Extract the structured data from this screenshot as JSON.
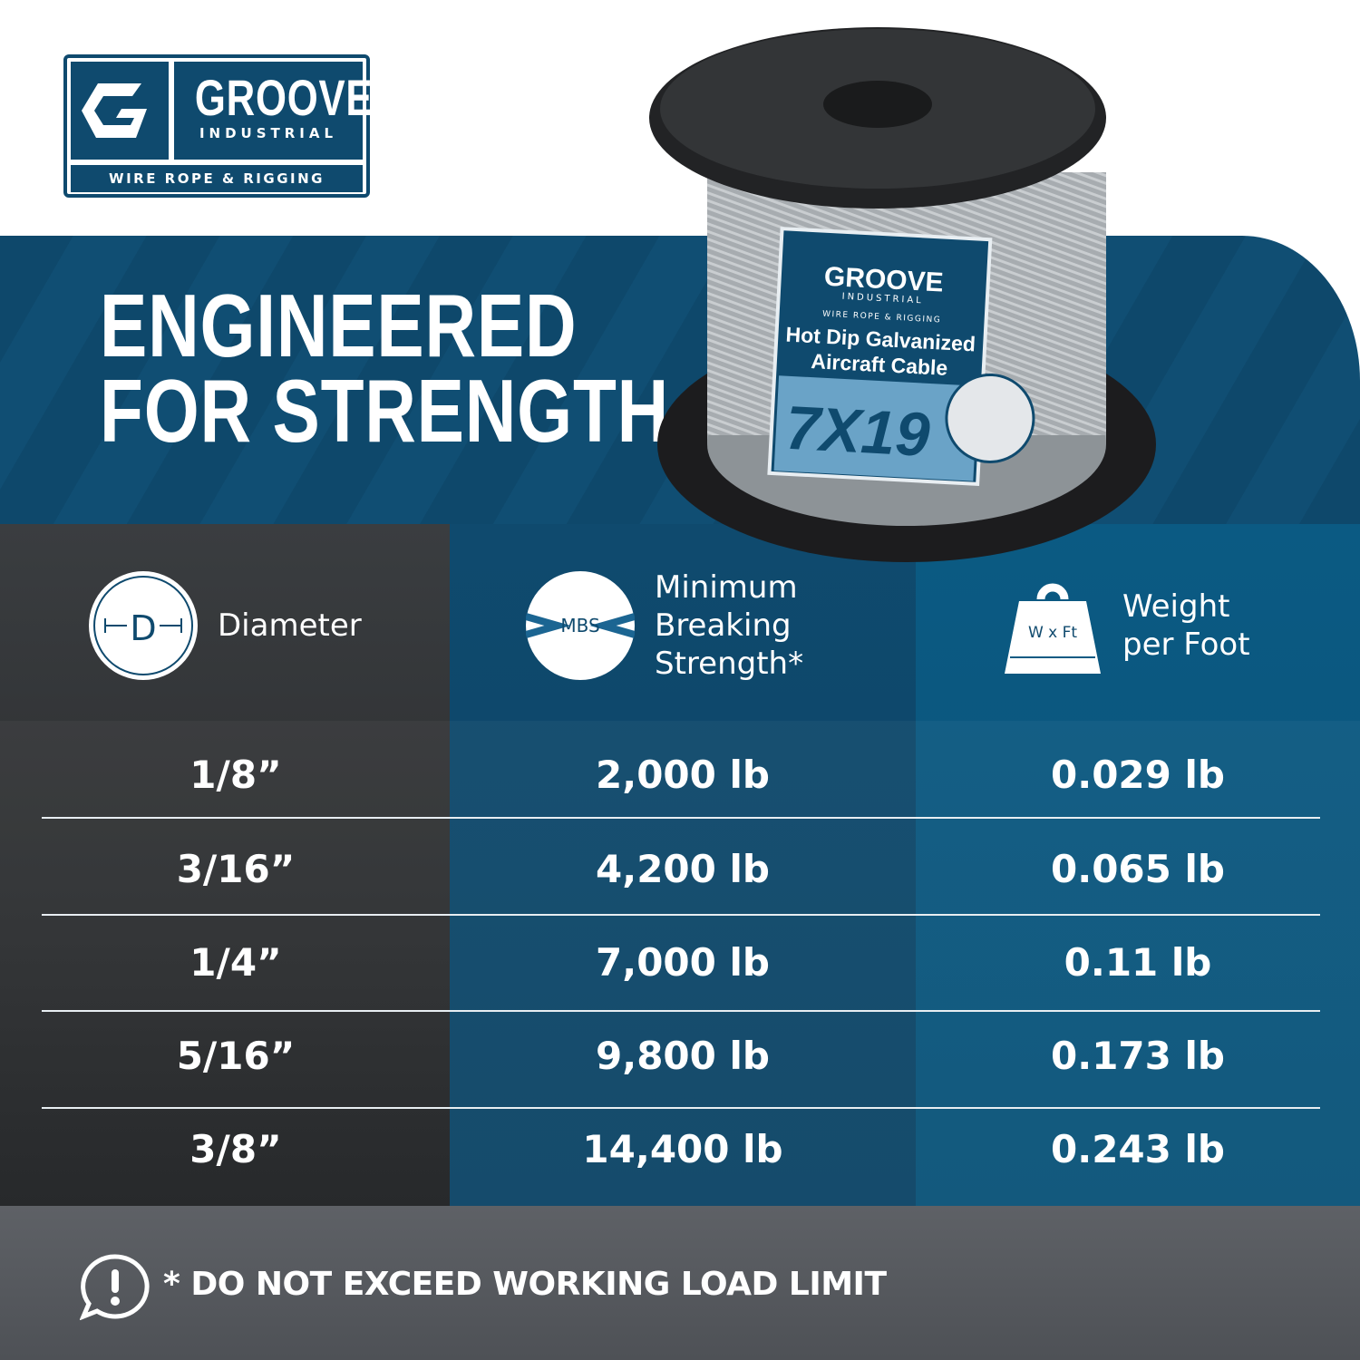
{
  "brand": {
    "name": "GROOVE",
    "sub": "INDUSTRIAL",
    "tagline": "WIRE ROPE & RIGGING"
  },
  "headline": {
    "line1": "ENGINEERED",
    "line2": "FOR STRENGTH"
  },
  "product_label": {
    "brand": "GROOVE",
    "sub": "INDUSTRIAL",
    "tagline": "WIRE ROPE & RIGGING",
    "line1": "Hot Dip Galvanized",
    "line2": "Aircraft Cable",
    "construction": "7X19"
  },
  "table": {
    "headers": [
      {
        "label": "Diameter",
        "icon": "diameter-icon",
        "icon_text": "D"
      },
      {
        "label_lines": [
          "Minimum",
          "Breaking",
          "Strength*"
        ],
        "icon": "mbs-cable-icon",
        "icon_text": "MBS"
      },
      {
        "label_lines": [
          "Weight",
          "per Foot"
        ],
        "icon": "weight-icon",
        "icon_text": "W x Ft"
      }
    ],
    "rows": [
      {
        "diameter": "1/8”",
        "mbs": "2,000 lb",
        "weight": "0.029 lb"
      },
      {
        "diameter": "3/16”",
        "mbs": "4,200 lb",
        "weight": "0.065 lb"
      },
      {
        "diameter": "1/4”",
        "mbs": "7,000 lb",
        "weight": "0.11 lb"
      },
      {
        "diameter": "5/16”",
        "mbs": "9,800 lb",
        "weight": "0.173 lb"
      },
      {
        "diameter": "3/8”",
        "mbs": "14,400 lb",
        "weight": "0.243 lb"
      }
    ]
  },
  "footer": {
    "note": "* DO NOT EXCEED WORKING LOAD LIMIT",
    "icon": "alert-speech-icon"
  },
  "colors": {
    "brand_blue": "#0f4a6e",
    "dark_gray": "#2c2e30",
    "mid_blue": "#0b5a83"
  }
}
